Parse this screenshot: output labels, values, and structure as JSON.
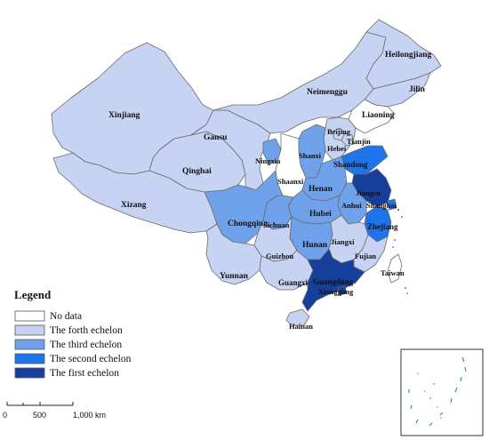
{
  "colors": {
    "no_data": "#ffffff",
    "forth": "#c6d3f2",
    "third": "#6fa2ea",
    "second": "#1f74ea",
    "first": "#163f9b",
    "border": "#6b6b6b",
    "sea": "#ffffff"
  },
  "legend": {
    "title": "Legend",
    "items": [
      {
        "label": "No data",
        "class": "no_data"
      },
      {
        "label": "The forth echelon",
        "class": "forth"
      },
      {
        "label": "The third echelon",
        "class": "third"
      },
      {
        "label": "The second echelon",
        "class": "second"
      },
      {
        "label": "The first echelon",
        "class": "first"
      }
    ]
  },
  "scale_bar": {
    "ticks": [
      "0",
      "500",
      "1,000 km"
    ]
  },
  "provinces": [
    {
      "name": "Heilongjiang",
      "class": "forth"
    },
    {
      "name": "Jilin",
      "class": "forth"
    },
    {
      "name": "Liaoning",
      "class": "forth"
    },
    {
      "name": "Neimenggu",
      "class": "forth"
    },
    {
      "name": "Xinjiang",
      "class": "forth"
    },
    {
      "name": "Gansu",
      "class": "forth"
    },
    {
      "name": "Qinghai",
      "class": "forth"
    },
    {
      "name": "Xizang",
      "class": "no_data"
    },
    {
      "name": "Ningxia",
      "class": "forth"
    },
    {
      "name": "Shaanxi",
      "class": "forth"
    },
    {
      "name": "Shanxi",
      "class": "forth"
    },
    {
      "name": "Hebei",
      "class": "third"
    },
    {
      "name": "Beijing",
      "class": "third"
    },
    {
      "name": "Tianjin",
      "class": "no_data"
    },
    {
      "name": "Shandong",
      "class": "second"
    },
    {
      "name": "Henan",
      "class": "third"
    },
    {
      "name": "Jiangsu",
      "class": "first"
    },
    {
      "name": "Anhui",
      "class": "third"
    },
    {
      "name": "Shanghai",
      "class": "second"
    },
    {
      "name": "Zhejiang",
      "class": "second"
    },
    {
      "name": "Hubei",
      "class": "third"
    },
    {
      "name": "Sichuan",
      "class": "third"
    },
    {
      "name": "Chongqing",
      "class": "third"
    },
    {
      "name": "Hunan",
      "class": "third"
    },
    {
      "name": "Jiangxi",
      "class": "forth"
    },
    {
      "name": "Fujian",
      "class": "forth"
    },
    {
      "name": "Guizhou",
      "class": "forth"
    },
    {
      "name": "Yunnan",
      "class": "forth"
    },
    {
      "name": "Guangxi",
      "class": "forth"
    },
    {
      "name": "Guangdong",
      "class": "first"
    },
    {
      "name": "Xianggang",
      "class": "first"
    },
    {
      "name": "Taiwan",
      "class": "no_data"
    },
    {
      "name": "Hainan",
      "class": "forth"
    }
  ]
}
